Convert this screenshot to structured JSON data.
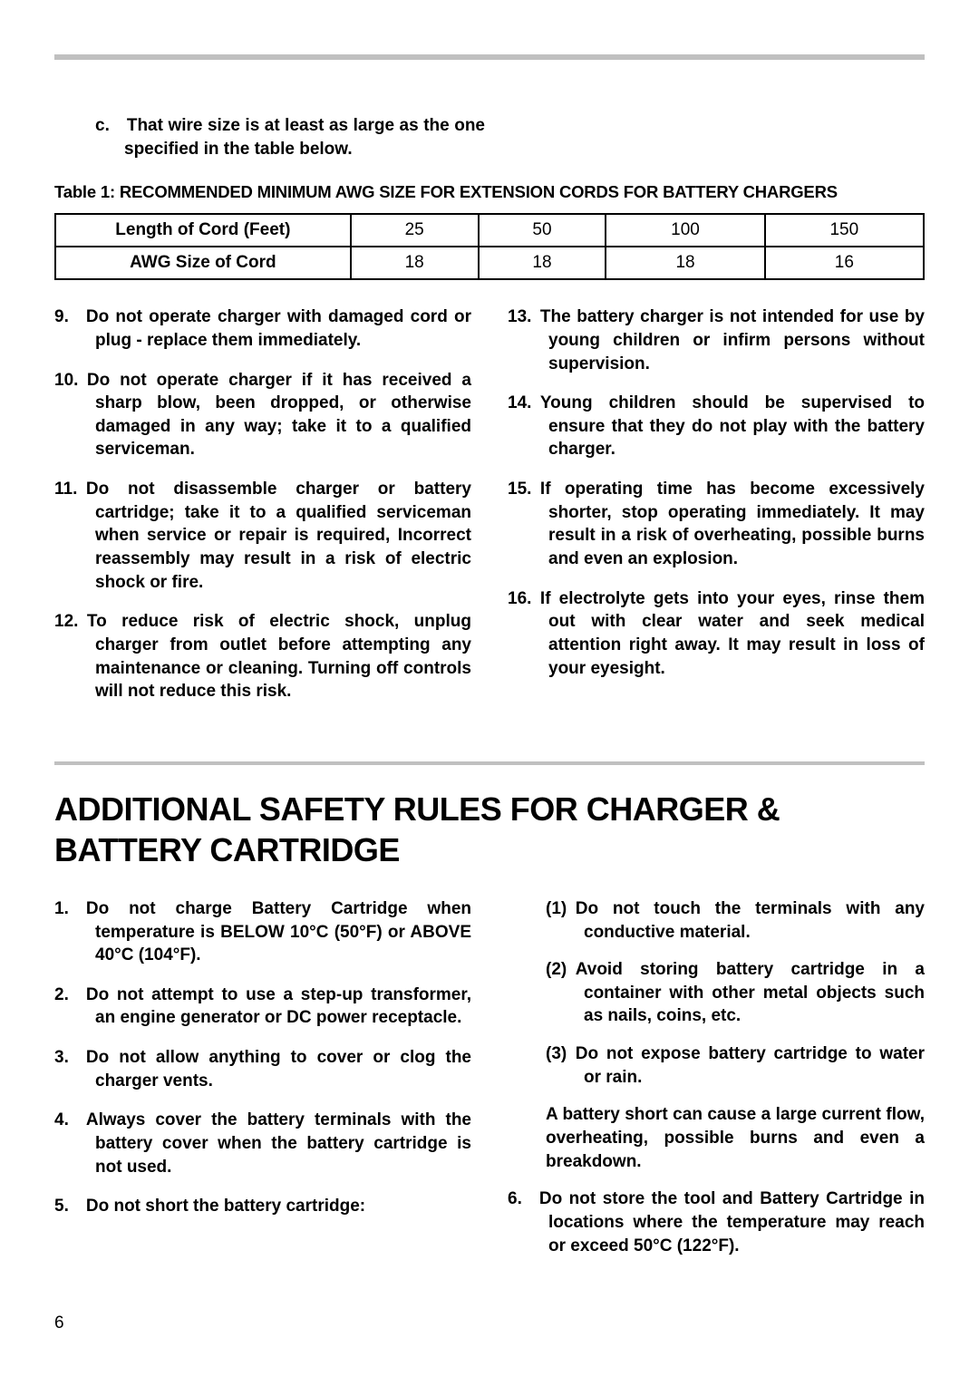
{
  "sub_item_c": "c. That wire size is at least as large as the one specified in the table below.",
  "table": {
    "caption": "Table 1: RECOMMENDED MINIMUM AWG SIZE FOR EXTENSION CORDS FOR BATTERY CHARGERS",
    "columns": [
      "25",
      "50",
      "100",
      "150"
    ],
    "rows": [
      {
        "label": "Length of Cord (Feet)",
        "cells": [
          "25",
          "50",
          "100",
          "150"
        ]
      },
      {
        "label": "AWG Size of Cord",
        "cells": [
          "18",
          "18",
          "18",
          "16"
        ]
      }
    ],
    "border_color": "#000000",
    "cell_fontsize": 19
  },
  "top_list_left": [
    {
      "n": "9.",
      "text": "Do not operate charger with damaged cord or plug - replace them immediately."
    },
    {
      "n": "10.",
      "text": "Do not operate charger if it has received a sharp blow, been dropped, or otherwise damaged in any way; take it to a qualified serviceman."
    },
    {
      "n": "11.",
      "text": "Do not disassemble charger or battery cartridge; take it to a qualified serviceman when service or repair is required, Incorrect reassembly may result in a risk of electric shock or fire."
    },
    {
      "n": "12.",
      "text": "To reduce risk of electric shock, unplug charger from outlet before attempting any maintenance or cleaning. Turning off controls will not reduce this risk."
    }
  ],
  "top_list_right": [
    {
      "n": "13.",
      "text": "The battery charger is not intended for use by young children or infirm persons without supervision."
    },
    {
      "n": "14.",
      "text": "Young children should be supervised to ensure that they do not play with the battery charger."
    },
    {
      "n": "15.",
      "text": "If operating time has become excessively shorter, stop operating immediately. It may result in a risk of overheating, possible burns and even an explosion."
    },
    {
      "n": "16.",
      "text": "If electrolyte gets into your eyes, rinse them out with clear water and seek medical attention right away. It may result in loss of your eyesight."
    }
  ],
  "section_heading": "ADDITIONAL SAFETY RULES FOR CHARGER & BATTERY CARTRIDGE",
  "bottom_list_left": [
    {
      "n": "1.",
      "text": "Do not charge Battery Cartridge when temperature is BELOW 10°C (50°F) or ABOVE 40°C (104°F)."
    },
    {
      "n": "2.",
      "text": "Do not attempt to use a step-up transformer, an engine generator or DC power receptacle."
    },
    {
      "n": "3.",
      "text": "Do not allow anything to cover or clog the charger vents."
    },
    {
      "n": "4.",
      "text": "Always cover the battery terminals with the battery cover when the battery cartridge is not used."
    },
    {
      "n": "5.",
      "text": "Do not short the battery cartridge:"
    }
  ],
  "bottom_right_inner": [
    {
      "n": "(1)",
      "text": "Do not touch the terminals with any conductive material."
    },
    {
      "n": "(2)",
      "text": "Avoid storing battery cartridge in a container with other metal objects such as nails, coins, etc."
    },
    {
      "n": "(3)",
      "text": "Do not expose battery cartridge to water or rain."
    }
  ],
  "bottom_right_cont": "A battery short can cause a large current flow, overheating, possible burns and even a breakdown.",
  "bottom_right_item6": {
    "n": "6.",
    "text": "Do not store the tool and Battery Cartridge in locations where the temperature may reach or exceed 50°C (122°F)."
  },
  "page_number": "6",
  "colors": {
    "rule": "#c0c0c0",
    "text": "#000000",
    "background": "#ffffff"
  }
}
